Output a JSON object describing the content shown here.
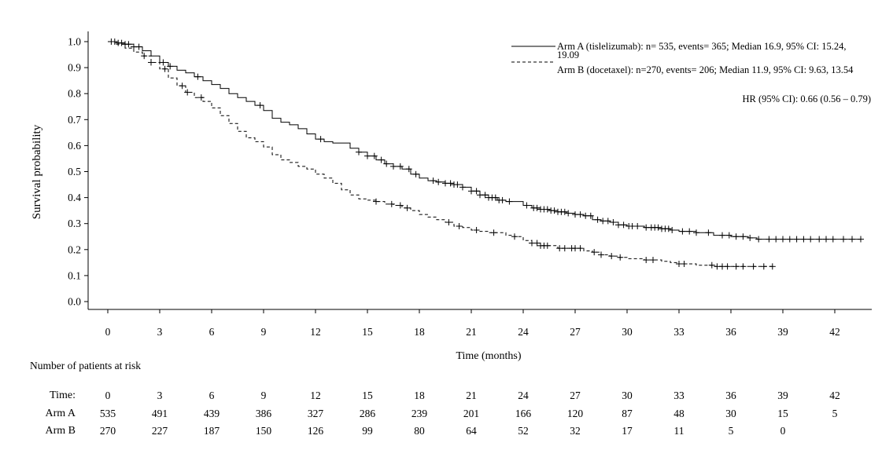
{
  "chart_data": {
    "type": "line",
    "subtype": "kaplan-meier",
    "title": "",
    "xlabel": "Time (months)",
    "ylabel": "Survival probability",
    "xlim": [
      0,
      44
    ],
    "ylim": [
      0,
      1.0
    ],
    "xticks": [
      0,
      3,
      6,
      9,
      12,
      15,
      18,
      21,
      24,
      27,
      30,
      33,
      36,
      39,
      42
    ],
    "yticks": [
      "0.0",
      "0.1",
      "0.2",
      "0.3",
      "0.4",
      "0.5",
      "0.6",
      "0.7",
      "0.8",
      "0.9",
      "1.0"
    ],
    "grid": false,
    "legend_position": "top-right",
    "hazard_ratio_text": "HR (95% CI): 0.66 (0.56 – 0.79)",
    "series": [
      {
        "name": "Arm A (tislelizumab): n= 535, events= 365; Median 16.9, 95% CI: 15.24, 19.09",
        "line_style": "solid",
        "points": [
          [
            0,
            1.0
          ],
          [
            0.5,
            0.995
          ],
          [
            1,
            0.99
          ],
          [
            1.5,
            0.98
          ],
          [
            2,
            0.965
          ],
          [
            2.5,
            0.945
          ],
          [
            3,
            0.92
          ],
          [
            3.5,
            0.905
          ],
          [
            4,
            0.89
          ],
          [
            4.5,
            0.88
          ],
          [
            5,
            0.865
          ],
          [
            5.5,
            0.85
          ],
          [
            6,
            0.835
          ],
          [
            6.5,
            0.82
          ],
          [
            7,
            0.8
          ],
          [
            7.5,
            0.785
          ],
          [
            8,
            0.77
          ],
          [
            8.5,
            0.755
          ],
          [
            9,
            0.735
          ],
          [
            9.5,
            0.705
          ],
          [
            10,
            0.69
          ],
          [
            10.5,
            0.68
          ],
          [
            11,
            0.665
          ],
          [
            11.5,
            0.645
          ],
          [
            12,
            0.625
          ],
          [
            12.5,
            0.615
          ],
          [
            13,
            0.61
          ],
          [
            14,
            0.59
          ],
          [
            14.5,
            0.575
          ],
          [
            15,
            0.56
          ],
          [
            15.5,
            0.545
          ],
          [
            16,
            0.53
          ],
          [
            16.5,
            0.52
          ],
          [
            17,
            0.51
          ],
          [
            17.5,
            0.49
          ],
          [
            18,
            0.475
          ],
          [
            18.5,
            0.465
          ],
          [
            19,
            0.46
          ],
          [
            19.5,
            0.455
          ],
          [
            20,
            0.45
          ],
          [
            20.5,
            0.44
          ],
          [
            21,
            0.425
          ],
          [
            21.5,
            0.41
          ],
          [
            22,
            0.4
          ],
          [
            22.5,
            0.39
          ],
          [
            23,
            0.385
          ],
          [
            24,
            0.37
          ],
          [
            24.5,
            0.36
          ],
          [
            25,
            0.355
          ],
          [
            25.5,
            0.35
          ],
          [
            26,
            0.345
          ],
          [
            26.5,
            0.34
          ],
          [
            27,
            0.335
          ],
          [
            27.5,
            0.33
          ],
          [
            28,
            0.315
          ],
          [
            28.5,
            0.31
          ],
          [
            29,
            0.305
          ],
          [
            29.5,
            0.295
          ],
          [
            30,
            0.29
          ],
          [
            30.5,
            0.29
          ],
          [
            31,
            0.285
          ],
          [
            32,
            0.28
          ],
          [
            32.5,
            0.275
          ],
          [
            33,
            0.27
          ],
          [
            34,
            0.265
          ],
          [
            35,
            0.255
          ],
          [
            36,
            0.25
          ],
          [
            37,
            0.245
          ],
          [
            37.5,
            0.24
          ],
          [
            38,
            0.24
          ],
          [
            39,
            0.24
          ],
          [
            40,
            0.24
          ],
          [
            42,
            0.24
          ],
          [
            43.5,
            0.24
          ]
        ],
        "censor_x": [
          0.2,
          0.4,
          0.6,
          0.8,
          1,
          1.2,
          1.5,
          1.8,
          3.2,
          3.6,
          5.2,
          8.8,
          12.3,
          14.5,
          15,
          15.4,
          15.8,
          16.1,
          16.5,
          16.9,
          17.4,
          17.8,
          18.8,
          19.1,
          19.5,
          19.8,
          20,
          20.2,
          20.5,
          21,
          21.3,
          21.5,
          21.8,
          22,
          22.2,
          22.4,
          22.6,
          22.8,
          23.2,
          24.2,
          24.6,
          24.8,
          25,
          25.2,
          25.4,
          25.6,
          25.8,
          26,
          26.2,
          26.4,
          26.6,
          27,
          27.3,
          27.6,
          27.9,
          28.3,
          28.6,
          28.9,
          29.2,
          29.5,
          29.8,
          30.1,
          30.3,
          30.6,
          31.1,
          31.4,
          31.6,
          31.8,
          32,
          32.2,
          32.4,
          32.6,
          33.2,
          33.6,
          34,
          34.7,
          35.5,
          35.9,
          36.3,
          36.7,
          37.1,
          37.6,
          38.2,
          38.6,
          39,
          39.4,
          39.8,
          40.2,
          40.6,
          41.1,
          41.5,
          41.9,
          42.5,
          43,
          43.5
        ]
      },
      {
        "name": "Arm B (docetaxel): n=270, events= 206; Median 11.9, 95% CI: 9.63, 13.54",
        "line_style": "dashed",
        "points": [
          [
            0,
            1.0
          ],
          [
            0.5,
            0.99
          ],
          [
            1,
            0.975
          ],
          [
            1.5,
            0.96
          ],
          [
            2,
            0.945
          ],
          [
            2.5,
            0.92
          ],
          [
            3,
            0.895
          ],
          [
            3.5,
            0.86
          ],
          [
            4,
            0.83
          ],
          [
            4.5,
            0.805
          ],
          [
            5,
            0.785
          ],
          [
            5.5,
            0.77
          ],
          [
            6,
            0.745
          ],
          [
            6.5,
            0.715
          ],
          [
            7,
            0.685
          ],
          [
            7.5,
            0.655
          ],
          [
            8,
            0.63
          ],
          [
            8.5,
            0.615
          ],
          [
            9,
            0.595
          ],
          [
            9.5,
            0.565
          ],
          [
            10,
            0.545
          ],
          [
            10.5,
            0.535
          ],
          [
            11,
            0.52
          ],
          [
            11.5,
            0.51
          ],
          [
            12,
            0.49
          ],
          [
            12.5,
            0.475
          ],
          [
            13,
            0.455
          ],
          [
            13.5,
            0.43
          ],
          [
            14,
            0.41
          ],
          [
            14.5,
            0.395
          ],
          [
            15,
            0.39
          ],
          [
            15.5,
            0.385
          ],
          [
            16,
            0.375
          ],
          [
            16.5,
            0.37
          ],
          [
            17,
            0.36
          ],
          [
            17.5,
            0.35
          ],
          [
            18,
            0.335
          ],
          [
            18.5,
            0.325
          ],
          [
            19,
            0.315
          ],
          [
            19.5,
            0.305
          ],
          [
            20,
            0.29
          ],
          [
            20.5,
            0.285
          ],
          [
            21,
            0.275
          ],
          [
            21.5,
            0.27
          ],
          [
            22,
            0.265
          ],
          [
            23,
            0.255
          ],
          [
            23.5,
            0.25
          ],
          [
            24,
            0.235
          ],
          [
            24.5,
            0.225
          ],
          [
            25,
            0.215
          ],
          [
            25.5,
            0.215
          ],
          [
            26,
            0.205
          ],
          [
            27,
            0.205
          ],
          [
            27.5,
            0.195
          ],
          [
            28,
            0.19
          ],
          [
            28.5,
            0.18
          ],
          [
            29,
            0.175
          ],
          [
            29.5,
            0.17
          ],
          [
            30,
            0.165
          ],
          [
            31,
            0.16
          ],
          [
            32,
            0.155
          ],
          [
            32.5,
            0.15
          ],
          [
            33,
            0.145
          ],
          [
            34,
            0.14
          ],
          [
            35,
            0.135
          ],
          [
            36,
            0.135
          ],
          [
            37,
            0.135
          ],
          [
            38.5,
            0.135
          ]
        ],
        "censor_x": [
          2.1,
          2.5,
          3.3,
          4.3,
          4.6,
          5.4,
          15.5,
          16.4,
          16.9,
          17.3,
          19.7,
          20.3,
          21.3,
          22.3,
          23.5,
          24.5,
          24.8,
          25,
          25.2,
          25.4,
          26.1,
          26.4,
          26.8,
          27,
          27.3,
          28.1,
          28.5,
          29.1,
          29.6,
          31.1,
          31.5,
          33,
          33.3,
          34.9,
          35.2,
          35.5,
          35.8,
          36.3,
          36.7,
          37.3,
          37.9,
          38.4
        ]
      }
    ],
    "risk_table": {
      "title": "Number of patients at risk",
      "header_label": "Time:",
      "times": [
        "0",
        "3",
        "6",
        "9",
        "12",
        "15",
        "18",
        "21",
        "24",
        "27",
        "30",
        "33",
        "36",
        "39",
        "42"
      ],
      "rows": [
        {
          "label": "Arm A",
          "values": [
            "535",
            "491",
            "439",
            "386",
            "327",
            "286",
            "239",
            "201",
            "166",
            "120",
            "87",
            "48",
            "30",
            "15",
            "5"
          ]
        },
        {
          "label": "Arm B",
          "values": [
            "270",
            "227",
            "187",
            "150",
            "126",
            "99",
            "80",
            "64",
            "52",
            "32",
            "17",
            "11",
            "5",
            "0",
            ""
          ]
        }
      ]
    }
  }
}
